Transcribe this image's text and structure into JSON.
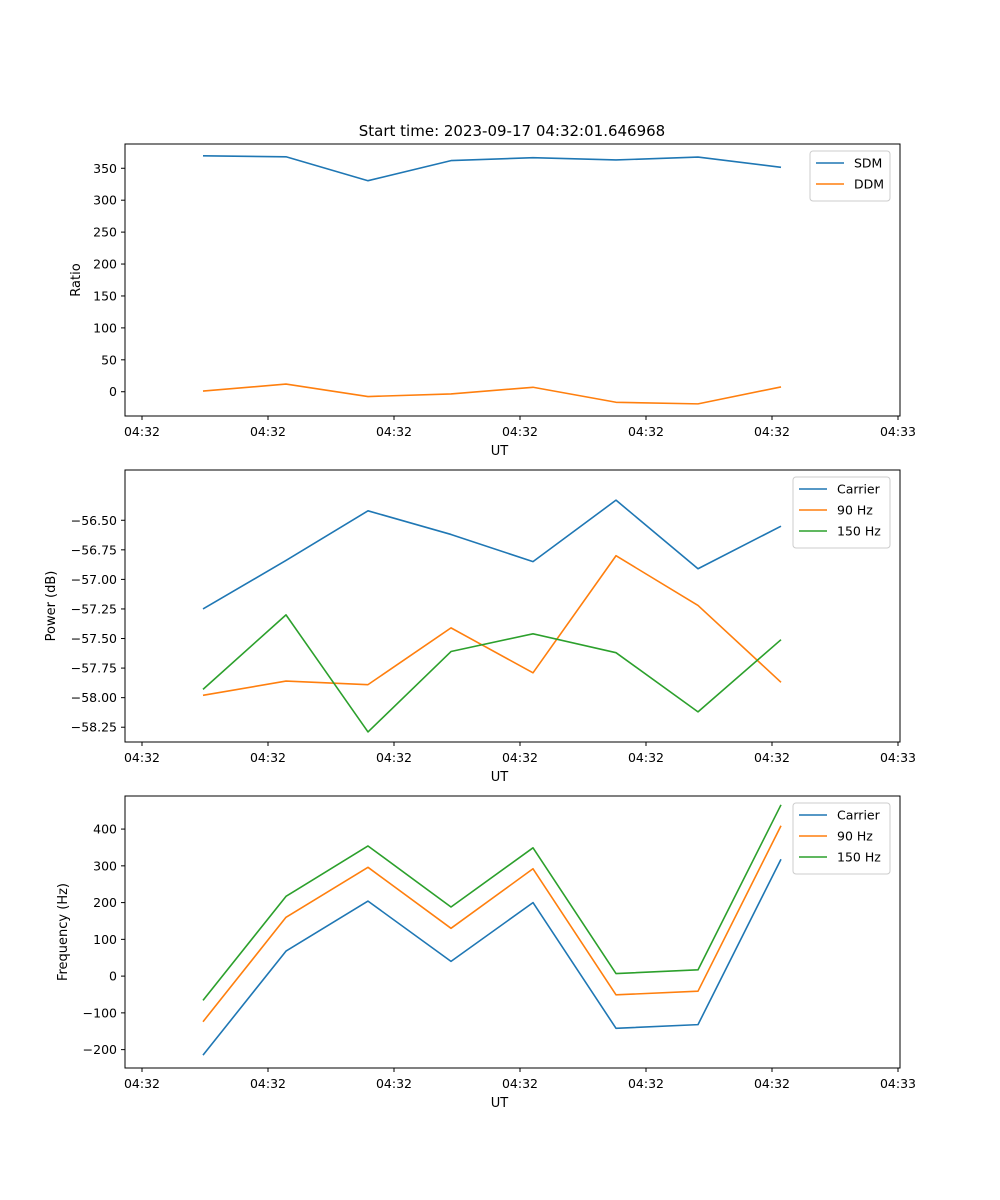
{
  "figure": {
    "title": "Start time: 2023-09-17 04:32:01.646968"
  },
  "chart_data": [
    {
      "type": "line",
      "xlabel": "UT",
      "ylabel": "Ratio",
      "x_tick_labels": [
        "04:32",
        "04:32",
        "04:32",
        "04:32",
        "04:32",
        "04:32",
        "04:32"
      ],
      "x_last_tick_label": "04:33",
      "ylim": [
        -38,
        388
      ],
      "yticks": [
        0,
        50,
        100,
        150,
        200,
        250,
        300,
        350
      ],
      "ytick_labels": [
        "0",
        "50",
        "100",
        "150",
        "200",
        "250",
        "300",
        "350"
      ],
      "legend": "top-right",
      "series": [
        {
          "name": "SDM",
          "color": "#1f77b4",
          "values": [
            369.5,
            368,
            330.5,
            362,
            366.5,
            363,
            367.5,
            351.5
          ]
        },
        {
          "name": "DDM",
          "color": "#ff7f0e",
          "values": [
            1,
            12,
            -7.5,
            -3.5,
            7,
            -16.5,
            -19,
            7.5
          ]
        }
      ]
    },
    {
      "type": "line",
      "xlabel": "UT",
      "ylabel": "Power (dB)",
      "x_tick_labels": [
        "04:32",
        "04:32",
        "04:32",
        "04:32",
        "04:32",
        "04:32",
        "04:32"
      ],
      "x_last_tick_label": "04:33",
      "ylim": [
        -58.375,
        -56.075
      ],
      "yticks": [
        -58.25,
        -58.0,
        -57.75,
        -57.5,
        -57.25,
        -57.0,
        -56.75,
        -56.5
      ],
      "ytick_labels": [
        "−58.25",
        "−58.00",
        "−57.75",
        "−57.50",
        "−57.25",
        "−57.00",
        "−56.75",
        "−56.50"
      ],
      "legend": "top-right",
      "series": [
        {
          "name": "Carrier",
          "color": "#1f77b4",
          "values": [
            -57.25,
            -56.84,
            -56.42,
            -56.62,
            -56.85,
            -56.33,
            -56.91,
            -56.55
          ]
        },
        {
          "name": "90 Hz",
          "color": "#ff7f0e",
          "values": [
            -57.98,
            -57.86,
            -57.89,
            -57.41,
            -57.79,
            -56.8,
            -57.22,
            -57.87
          ]
        },
        {
          "name": "150 Hz",
          "color": "#2ca02c",
          "values": [
            -57.93,
            -57.3,
            -58.29,
            -57.61,
            -57.46,
            -57.62,
            -58.12,
            -57.51
          ]
        }
      ]
    },
    {
      "type": "line",
      "xlabel": "UT",
      "ylabel": "Frequency (Hz)",
      "x_tick_labels": [
        "04:32",
        "04:32",
        "04:32",
        "04:32",
        "04:32",
        "04:32",
        "04:32"
      ],
      "x_last_tick_label": "04:33",
      "ylim": [
        -250,
        490
      ],
      "yticks": [
        -200,
        -100,
        0,
        100,
        200,
        300,
        400
      ],
      "ytick_labels": [
        "−200",
        "−100",
        "0",
        "100",
        "200",
        "300",
        "400"
      ],
      "legend": "top-right",
      "series": [
        {
          "name": "Carrier",
          "color": "#1f77b4",
          "values": [
            -215,
            68,
            204,
            40,
            200,
            -142,
            -132,
            318
          ]
        },
        {
          "name": "90 Hz",
          "color": "#ff7f0e",
          "values": [
            -124,
            160,
            296,
            130,
            292,
            -51,
            -41,
            409
          ]
        },
        {
          "name": "150 Hz",
          "color": "#2ca02c",
          "values": [
            -66,
            217,
            354,
            188,
            349,
            7,
            17,
            466
          ]
        }
      ]
    }
  ]
}
